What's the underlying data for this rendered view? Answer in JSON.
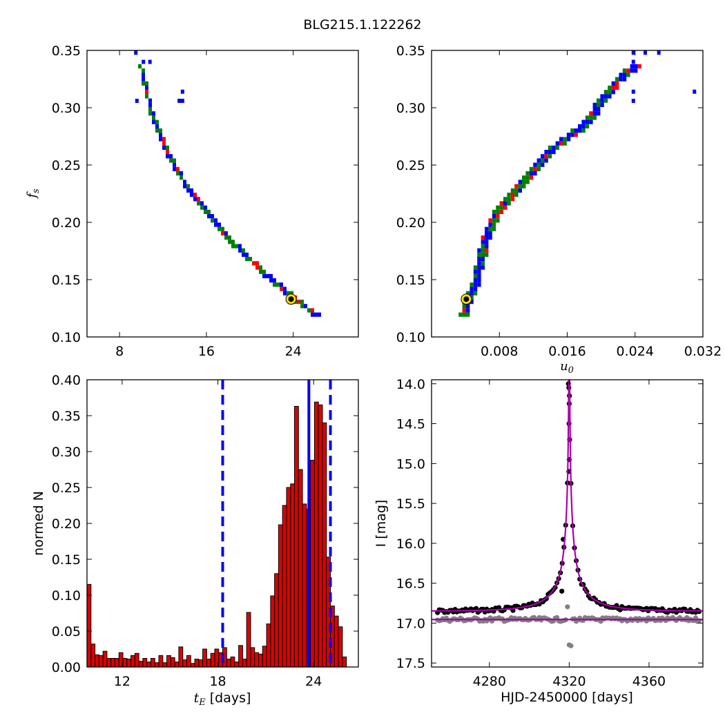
{
  "figure": {
    "title": "BLG215.1.122262"
  },
  "chart_data": [
    {
      "id": "fs_vs_tE",
      "type": "scatter",
      "xlabel": "",
      "ylabel": "f_s",
      "xlim": [
        5,
        30
      ],
      "ylim": [
        0.1,
        0.35
      ],
      "xticks": [
        8,
        16,
        24
      ],
      "yticks": [
        0.1,
        0.15,
        0.2,
        0.25,
        0.3,
        0.35
      ],
      "grid": false,
      "curve": {
        "x": [
          9.8,
          10.3,
          10.8,
          11.5,
          12.3,
          13.2,
          14.3,
          15.6,
          17.0,
          18.5,
          20.0,
          21.5,
          23.0,
          24.3,
          25.3,
          26.2
        ],
        "y": [
          0.338,
          0.318,
          0.298,
          0.28,
          0.262,
          0.246,
          0.23,
          0.214,
          0.198,
          0.182,
          0.168,
          0.155,
          0.143,
          0.133,
          0.126,
          0.12
        ]
      },
      "outliers": [
        {
          "x": 9.5,
          "y": 0.348
        },
        {
          "x": 10.2,
          "y": 0.34
        },
        {
          "x": 10.8,
          "y": 0.34
        },
        {
          "x": 9.6,
          "y": 0.306
        },
        {
          "x": 13.8,
          "y": 0.314
        },
        {
          "x": 13.8,
          "y": 0.306
        },
        {
          "x": 13.5,
          "y": 0.306
        }
      ],
      "best_fit": {
        "x": 23.8,
        "y": 0.133
      },
      "colors": {
        "low": "#0000ff",
        "mid": "#008000",
        "high": "#ff0000",
        "marker_ring": "#ffdd00"
      }
    },
    {
      "id": "fs_vs_u0",
      "type": "scatter",
      "xlabel": "u_0",
      "ylabel": "",
      "xlim": [
        0.0,
        0.032
      ],
      "ylim": [
        0.1,
        0.35
      ],
      "xticks": [
        0.008,
        0.016,
        0.024,
        0.032
      ],
      "xticklabels": [
        "0.008",
        "0.016",
        "0.024",
        "0.032"
      ],
      "yticks": [
        0.1,
        0.15,
        0.2,
        0.25,
        0.3,
        0.35
      ],
      "grid": false,
      "curve": {
        "x": [
          0.0036,
          0.0042,
          0.005,
          0.0056,
          0.0062,
          0.007,
          0.008,
          0.0092,
          0.0106,
          0.012,
          0.0135,
          0.0155,
          0.0175,
          0.019,
          0.0205,
          0.022,
          0.024
        ],
        "y": [
          0.122,
          0.135,
          0.15,
          0.168,
          0.188,
          0.202,
          0.215,
          0.226,
          0.238,
          0.25,
          0.262,
          0.274,
          0.284,
          0.298,
          0.314,
          0.328,
          0.338
        ]
      },
      "outliers": [
        {
          "x": 0.0238,
          "y": 0.348
        },
        {
          "x": 0.0252,
          "y": 0.348
        },
        {
          "x": 0.0268,
          "y": 0.348
        },
        {
          "x": 0.0238,
          "y": 0.34
        },
        {
          "x": 0.0238,
          "y": 0.314
        },
        {
          "x": 0.0238,
          "y": 0.306
        },
        {
          "x": 0.031,
          "y": 0.314
        }
      ],
      "best_fit": {
        "x": 0.0041,
        "y": 0.133
      },
      "colors": {
        "low": "#0000ff",
        "mid": "#008000",
        "high": "#ff0000",
        "marker_ring": "#ffdd00"
      }
    },
    {
      "id": "tE_histogram",
      "type": "bar",
      "xlabel": "t_E [days]",
      "ylabel": "normed N",
      "xlim": [
        9.8,
        26.8
      ],
      "ylim": [
        0.0,
        0.4
      ],
      "xticks": [
        12,
        18,
        24
      ],
      "yticks": [
        0.0,
        0.05,
        0.1,
        0.15,
        0.2,
        0.25,
        0.3,
        0.35,
        0.4
      ],
      "bin_start": 9.8,
      "bin_width": 0.25,
      "values": [
        0.115,
        0.032,
        0.017,
        0.016,
        0.022,
        0.012,
        0.012,
        0.012,
        0.02,
        0.012,
        0.011,
        0.016,
        0.019,
        0.008,
        0.012,
        0.007,
        0.012,
        0.006,
        0.016,
        0.006,
        0.016,
        0.013,
        0.007,
        0.028,
        0.01,
        0.016,
        0.005,
        0.011,
        0.01,
        0.025,
        0.011,
        0.019,
        0.025,
        0.02,
        0.027,
        0.011,
        0.014,
        0.007,
        0.03,
        0.011,
        0.076,
        0.027,
        0.02,
        0.018,
        0.029,
        0.06,
        0.099,
        0.13,
        0.198,
        0.225,
        0.25,
        0.255,
        0.363,
        0.275,
        0.227,
        0.22,
        0.288,
        0.369,
        0.365,
        0.34,
        0.153,
        0.085,
        0.071,
        0.056,
        0.014
      ],
      "bar_color": "#dd0000",
      "vlines": [
        {
          "x": 18.3,
          "style": "dashed",
          "color": "#0000ff"
        },
        {
          "x": 23.7,
          "style": "solid",
          "color": "#0000ff"
        },
        {
          "x": 25.05,
          "style": "dashed",
          "color": "#0000ff"
        }
      ]
    },
    {
      "id": "lightcurve",
      "type": "scatter",
      "xlabel": "HJD-2450000 [days]",
      "ylabel": "I [mag]",
      "xlim": [
        4251,
        4387
      ],
      "ylim": [
        17.55,
        13.95
      ],
      "xticks": [
        4280,
        4320,
        4360
      ],
      "yticks": [
        14.0,
        14.5,
        15.0,
        15.5,
        16.0,
        16.5,
        17.0,
        17.5
      ],
      "model": {
        "t0": 4320.0,
        "tE": 23.7,
        "u0": 0.0041,
        "fs": 0.133,
        "I_base": 16.85,
        "color": "#aa00aa"
      },
      "residual_baseline": {
        "y": 16.955,
        "color": "#aa00aa"
      },
      "data_color": "#000000",
      "residual_color": "#808080"
    }
  ]
}
